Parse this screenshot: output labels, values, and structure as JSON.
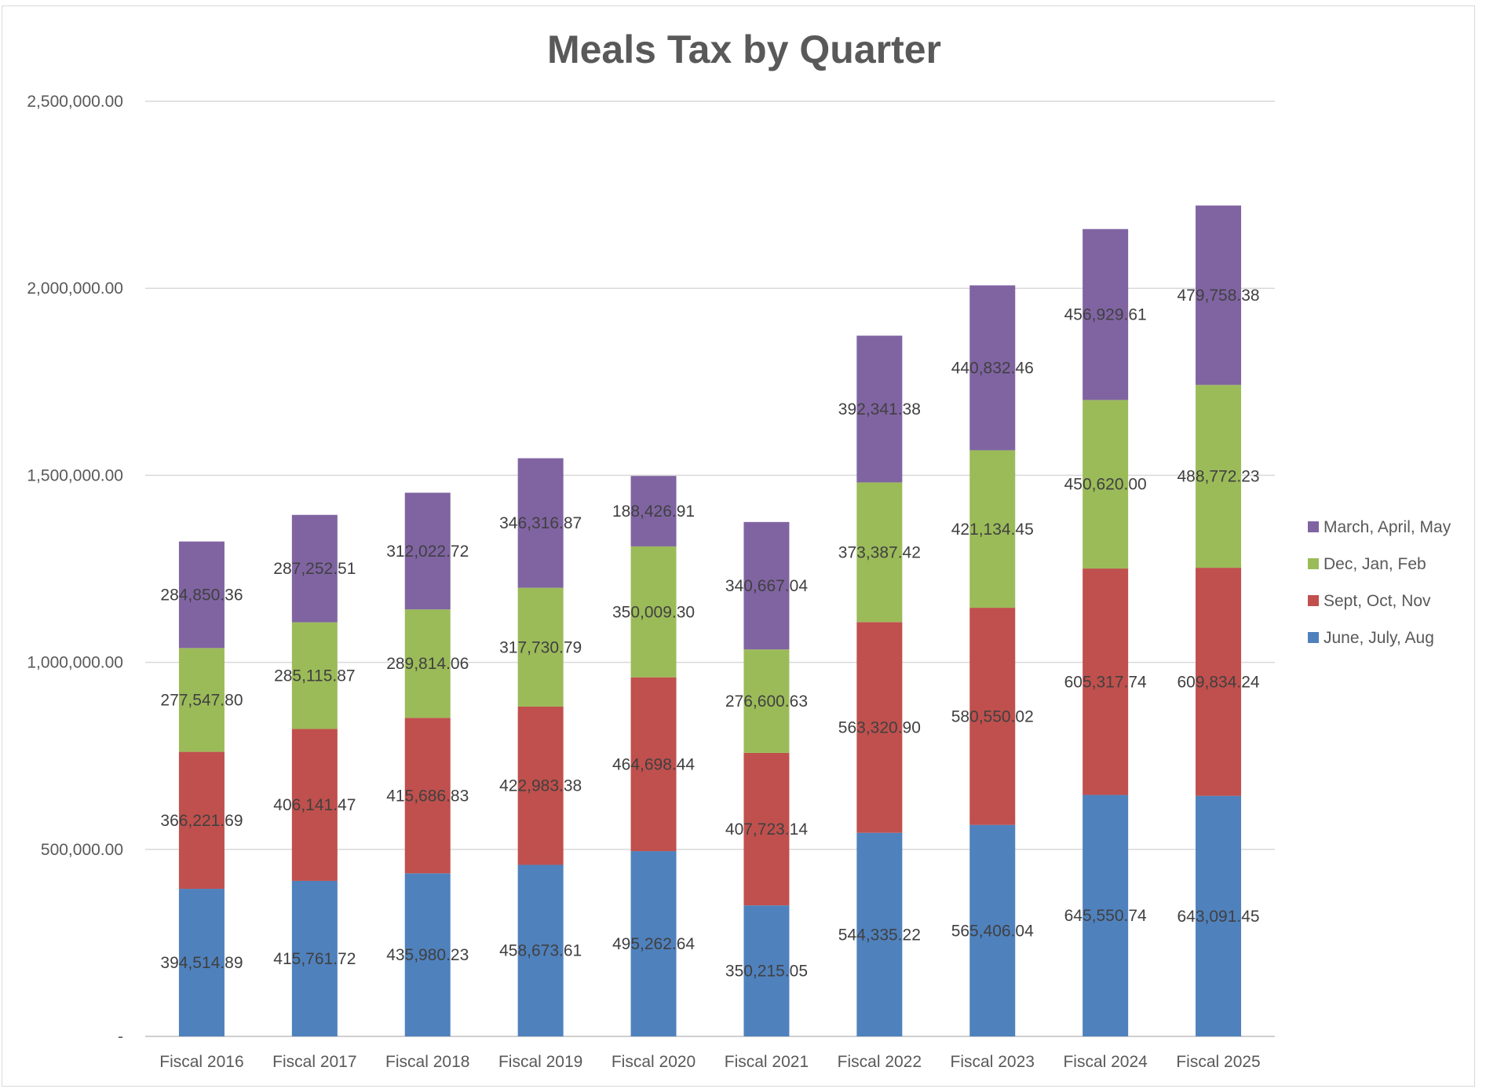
{
  "chart_data": {
    "type": "bar",
    "stacked": true,
    "title": "Meals Tax by Quarter",
    "xlabel": "",
    "ylabel": "",
    "ylim": [
      0,
      2500000
    ],
    "yticks": [
      0,
      500000,
      1000000,
      1500000,
      2000000,
      2500000
    ],
    "ytick_labels": [
      "-",
      "500,000.00",
      "1,000,000.00",
      "1,500,000.00",
      "2,000,000.00",
      "2,500,000.00"
    ],
    "grid": true,
    "legend_position": "right",
    "categories": [
      "Fiscal 2016",
      "Fiscal 2017",
      "Fiscal 2018",
      "Fiscal 2019",
      "Fiscal 2020",
      "Fiscal 2021",
      "Fiscal 2022",
      "Fiscal 2023",
      "Fiscal 2024",
      "Fiscal 2025"
    ],
    "series": [
      {
        "name": "June, July, Aug",
        "color": "#4f81bd",
        "values": [
          394514.89,
          415761.72,
          435980.23,
          458673.61,
          495262.64,
          350215.05,
          544335.22,
          565406.04,
          645550.74,
          643091.45
        ],
        "labels": [
          "394,514.89",
          "415,761.72",
          "435,980.23",
          "458,673.61",
          "495,262.64",
          "350,215.05",
          "544,335.22",
          "565,406.04",
          "645,550.74",
          "643,091.45"
        ]
      },
      {
        "name": "Sept, Oct, Nov",
        "color": "#c0504d",
        "values": [
          366221.69,
          406141.47,
          415686.83,
          422983.38,
          464698.44,
          407723.14,
          563320.9,
          580550.02,
          605317.74,
          609834.24
        ],
        "labels": [
          "366,221.69",
          "406,141.47",
          "415,686.83",
          "422,983.38",
          "464,698.44",
          "407,723.14",
          "563,320.90",
          "580,550.02",
          "605,317.74",
          "609,834.24"
        ]
      },
      {
        "name": "Dec, Jan, Feb",
        "color": "#9bbb59",
        "values": [
          277547.8,
          285115.87,
          289814.06,
          317730.79,
          350009.3,
          276600.63,
          373387.42,
          421134.45,
          450620.0,
          488772.23
        ],
        "labels": [
          "277,547.80",
          "285,115.87",
          "289,814.06",
          "317,730.79",
          "350,009.30",
          "276,600.63",
          "373,387.42",
          "421,134.45",
          "450,620.00",
          "488,772.23"
        ]
      },
      {
        "name": "March, April, May",
        "color": "#8064a2",
        "values": [
          284850.36,
          287252.51,
          312022.72,
          346316.87,
          188426.91,
          340667.04,
          392341.38,
          440832.46,
          456929.61,
          479758.38
        ],
        "labels": [
          "284,850.36",
          "287,252.51",
          "312,022.72",
          "346,316.87",
          "188,426.91",
          "340,667.04",
          "392,341.38",
          "440,832.46",
          "456,929.61",
          "479,758.38"
        ]
      }
    ]
  }
}
